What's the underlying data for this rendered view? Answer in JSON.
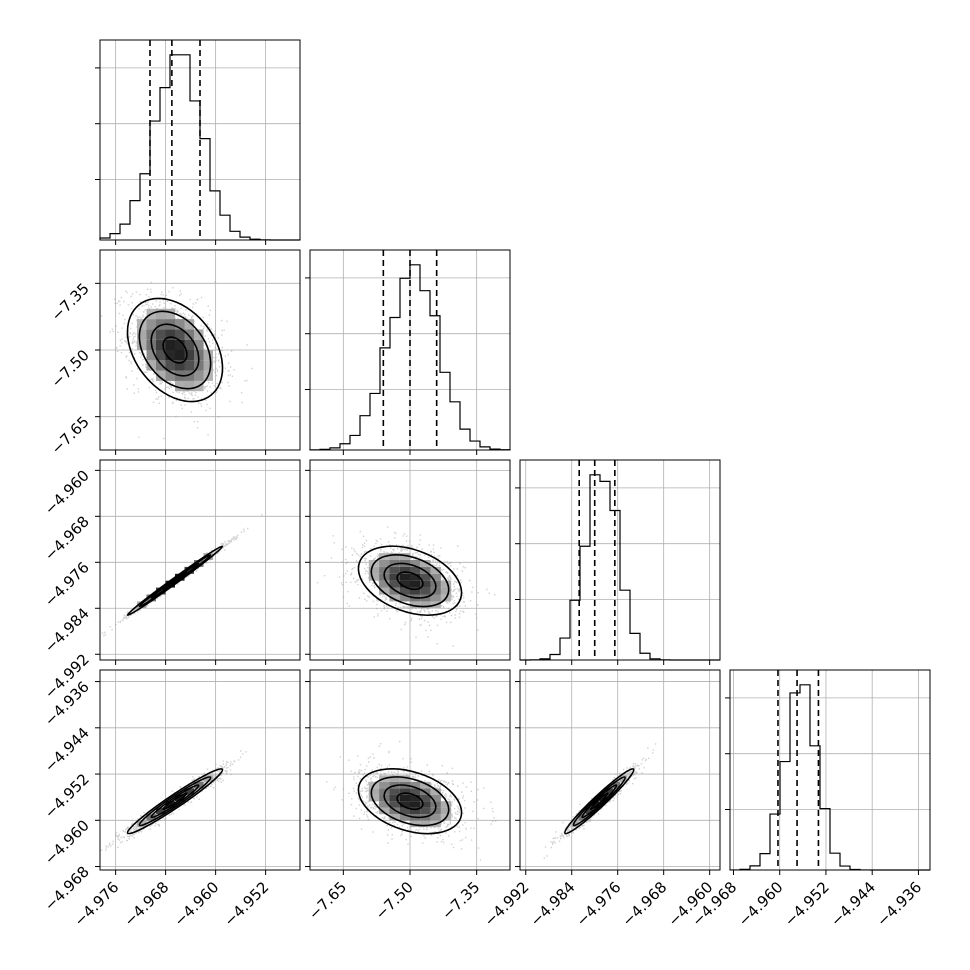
{
  "chart_data": {
    "type": "corner",
    "grid": true,
    "colors": {
      "line": "#000000",
      "grid": "#b0b0b0",
      "scatter": "#9a9a9a",
      "density_max": "#000000"
    },
    "params": [
      {
        "mean": -4.9665,
        "sd": 0.0038,
        "lim": [
          -4.9785,
          -4.9465
        ],
        "ticks": [
          -4.976,
          -4.968,
          -4.96,
          -4.952
        ],
        "tick_labels": [
          "−4.976",
          "−4.968",
          "−4.960",
          "−4.952"
        ],
        "quantiles": [
          -4.9705,
          -4.967,
          -4.9625
        ]
      },
      {
        "mean": -7.5,
        "sd": 0.058,
        "lim": [
          -7.725,
          -7.275
        ],
        "ticks": [
          -7.65,
          -7.5,
          -7.35
        ],
        "tick_labels": [
          "−7.65",
          "−7.50",
          "−7.35"
        ],
        "quantiles": [
          -7.56,
          -7.5,
          -7.44
        ]
      },
      {
        "mean": -4.9792,
        "sd": 0.003,
        "lim": [
          -4.993,
          -4.9582
        ],
        "ticks": [
          -4.992,
          -4.984,
          -4.976,
          -4.968,
          -4.96
        ],
        "tick_labels": [
          "−4.992",
          "−4.984",
          "−4.976",
          "−4.968",
          "−4.960"
        ],
        "quantiles": [
          -4.9827,
          -4.98,
          -4.9765
        ]
      },
      {
        "mean": -4.9567,
        "sd": 0.0028,
        "lim": [
          -4.9686,
          -4.934
        ],
        "ticks": [
          -4.968,
          -4.96,
          -4.952,
          -4.944,
          -4.936
        ],
        "tick_labels": [
          "−4.968",
          "−4.960",
          "−4.952",
          "−4.944",
          "−4.936"
        ],
        "quantiles": [
          -4.9603,
          -4.957,
          -4.9533
        ]
      }
    ],
    "correlations": [
      [
        1.0,
        -0.35,
        0.995,
        0.97
      ],
      [
        -0.35,
        1.0,
        -0.35,
        -0.35
      ],
      [
        0.995,
        -0.35,
        1.0,
        0.97
      ],
      [
        0.97,
        -0.35,
        0.97,
        1.0
      ]
    ],
    "diagonal_hist_ylim_fraction": 1.08
  }
}
